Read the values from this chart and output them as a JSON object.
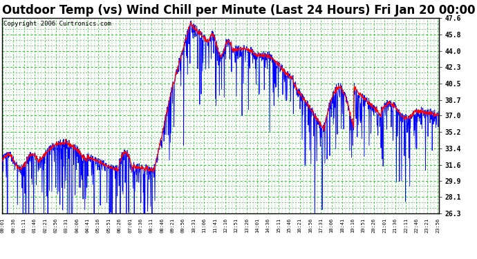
{
  "title": "Outdoor Temp (vs) Wind Chill per Minute (Last 24 Hours) Fri Jan 20 00:00",
  "copyright": "Copyright 2006 Curtronics.com",
  "ylabel_right_values": [
    47.6,
    45.8,
    44.0,
    42.3,
    40.5,
    38.7,
    37.0,
    35.2,
    33.4,
    31.6,
    29.9,
    28.1,
    26.3
  ],
  "ylim": [
    26.3,
    47.6
  ],
  "xlim": [
    0,
    1440
  ],
  "x_tick_labels": [
    "00:01",
    "00:36",
    "01:11",
    "01:46",
    "02:21",
    "02:56",
    "03:31",
    "04:06",
    "04:41",
    "05:16",
    "05:51",
    "06:26",
    "07:01",
    "07:36",
    "08:11",
    "08:46",
    "09:21",
    "09:56",
    "10:31",
    "11:06",
    "11:41",
    "12:16",
    "12:51",
    "13:26",
    "14:01",
    "14:36",
    "15:11",
    "15:46",
    "16:21",
    "16:56",
    "17:31",
    "18:06",
    "18:41",
    "19:16",
    "19:51",
    "20:26",
    "21:01",
    "21:36",
    "22:11",
    "22:46",
    "23:21",
    "23:56"
  ],
  "x_tick_positions": [
    1,
    36,
    71,
    106,
    141,
    176,
    211,
    246,
    281,
    316,
    351,
    386,
    421,
    456,
    491,
    526,
    561,
    596,
    631,
    666,
    701,
    736,
    771,
    806,
    841,
    876,
    911,
    946,
    981,
    1016,
    1051,
    1086,
    1121,
    1156,
    1191,
    1226,
    1261,
    1296,
    1331,
    1366,
    1401,
    1436
  ],
  "bg_color": "#ffffff",
  "plot_bg_color": "#ffffff",
  "grid_major_color": "#00cc00",
  "grid_minor_color": "#008800",
  "line_red_color": "#ff0000",
  "line_blue_color": "#0000ff",
  "title_fontsize": 12,
  "copyright_fontsize": 6.5
}
